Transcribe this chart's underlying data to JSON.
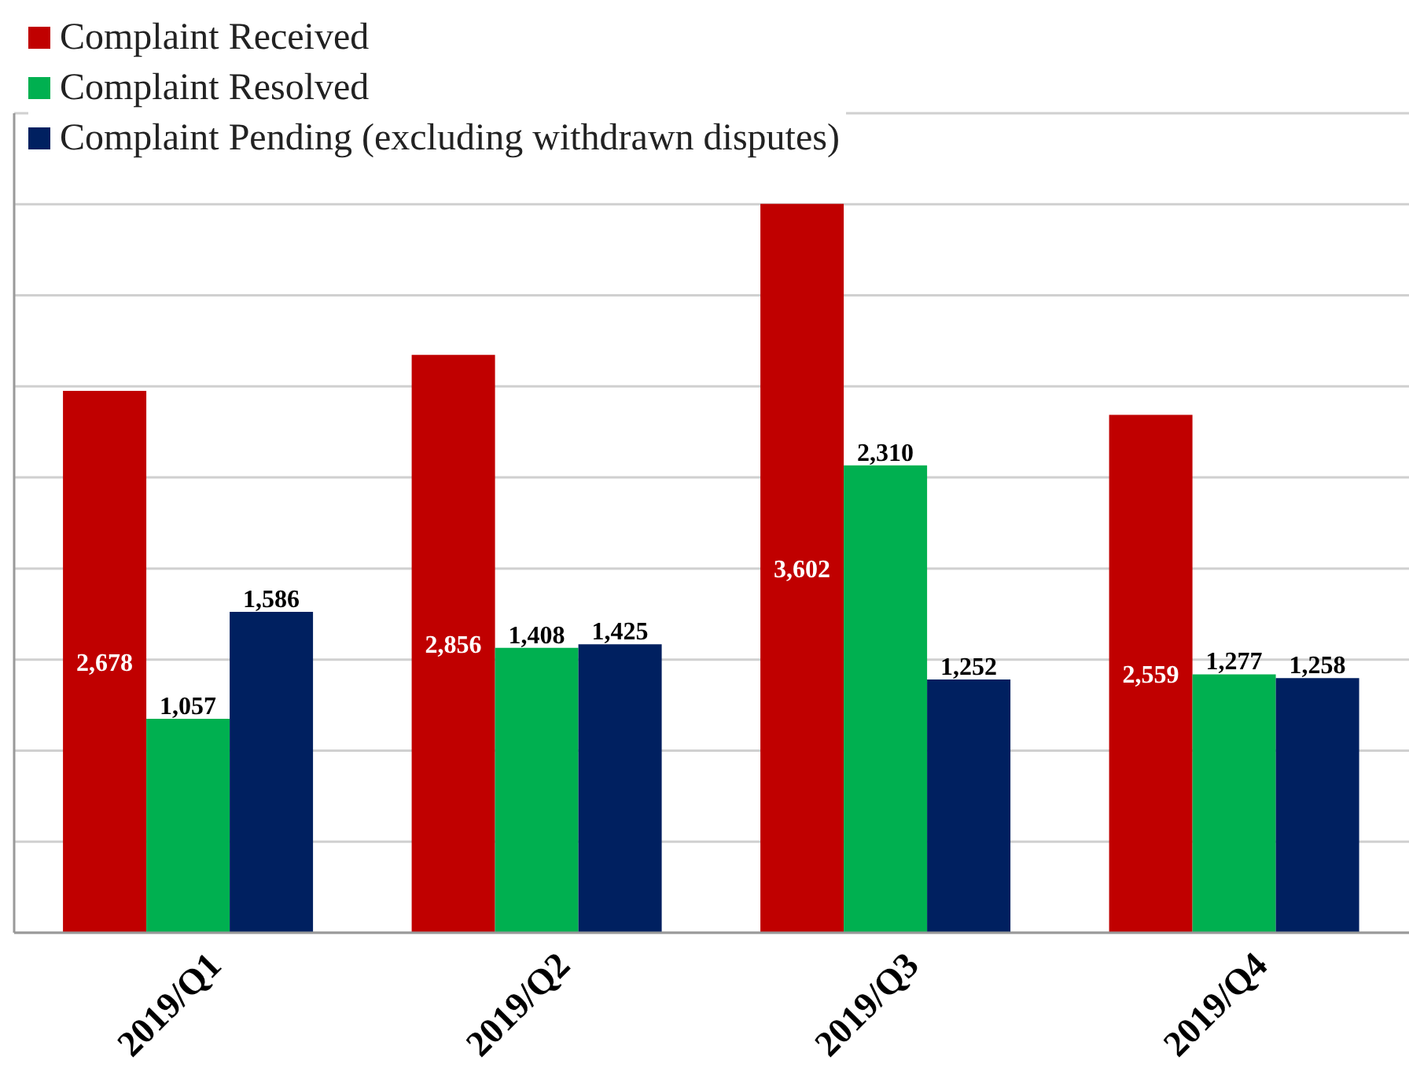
{
  "chart_data": {
    "type": "bar",
    "categories": [
      "2019/Q1",
      "2019/Q2",
      "2019/Q3",
      "2019/Q4"
    ],
    "series": [
      {
        "name": "Complaint Received",
        "color": "#c00000",
        "values": [
          2678,
          2856,
          3602,
          2559
        ],
        "value_labels": [
          "2,678",
          "2,856",
          "3,602",
          "2,559"
        ]
      },
      {
        "name": "Complaint Resolved",
        "color": "#00b050",
        "values": [
          1057,
          1408,
          2310,
          1277
        ],
        "value_labels": [
          "1,057",
          "1,408",
          "2,310",
          "1,277"
        ]
      },
      {
        "name": "Complaint Pending (excluding withdrawn disputes)",
        "color": "#002060",
        "values": [
          1586,
          1425,
          1252,
          1258
        ],
        "value_labels": [
          "1,586",
          "1,425",
          "1,252",
          "1,258"
        ]
      }
    ],
    "grid": "y",
    "legend": "top left",
    "tick_labels": "x"
  }
}
